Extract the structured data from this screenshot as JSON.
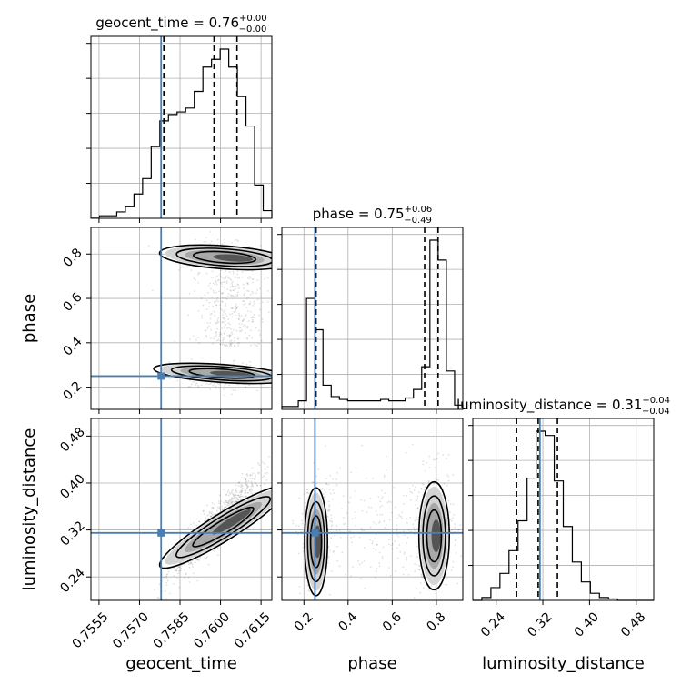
{
  "chart_data": {
    "type": "corner",
    "parameters": [
      {
        "name": "geocent_time",
        "label": "geocent_time",
        "title": "geocent_time = 0.76",
        "title_sup": "+0.00",
        "title_sub": "−0.00",
        "range": [
          0.7552,
          0.7619
        ],
        "ticks": [
          0.7555,
          0.757,
          0.7585,
          0.76,
          0.7615
        ],
        "tick_labels": [
          "0.7555",
          "0.7570",
          "0.7585",
          "0.7600",
          "0.7615"
        ],
        "truth": 0.7578,
        "quantiles": [
          0.7579,
          0.75976,
          0.76061
        ],
        "hist": [
          1,
          2,
          2,
          5,
          9,
          19,
          31,
          56,
          76,
          81,
          83,
          86,
          99,
          118,
          124,
          132,
          118,
          95,
          72,
          26,
          6
        ]
      },
      {
        "name": "phase",
        "label": "phase",
        "title": "phase = 0.75",
        "title_sup": "+0.06",
        "title_sub": "−0.49",
        "range": [
          0.1,
          0.92
        ],
        "ticks": [
          0.2,
          0.4,
          0.6,
          0.8
        ],
        "tick_labels": [
          "0.2",
          "0.4",
          "0.6",
          "0.8"
        ],
        "truth": 0.25,
        "quantiles": [
          0.255,
          0.747,
          0.808
        ],
        "hist": [
          2,
          2,
          6,
          78,
          56,
          17,
          9,
          7,
          6,
          6,
          6,
          6,
          7,
          6,
          6,
          8,
          14,
          30,
          119,
          105,
          27,
          3
        ]
      },
      {
        "name": "luminosity_distance",
        "label": "luminosity_distance",
        "title": "luminosity_distance = 0.31",
        "title_sup": "+0.04",
        "title_sub": "−0.04",
        "range": [
          0.2,
          0.51
        ],
        "ticks": [
          0.24,
          0.32,
          0.4,
          0.48
        ],
        "tick_labels": [
          "0.24",
          "0.32",
          "0.40",
          "0.48"
        ],
        "truth": 0.315,
        "quantiles": [
          0.275,
          0.312,
          0.345
        ],
        "hist": [
          0,
          2,
          9,
          19,
          35,
          56,
          86,
          119,
          116,
          84,
          52,
          27,
          13,
          5,
          2,
          1,
          0,
          0,
          0,
          0
        ]
      }
    ]
  }
}
